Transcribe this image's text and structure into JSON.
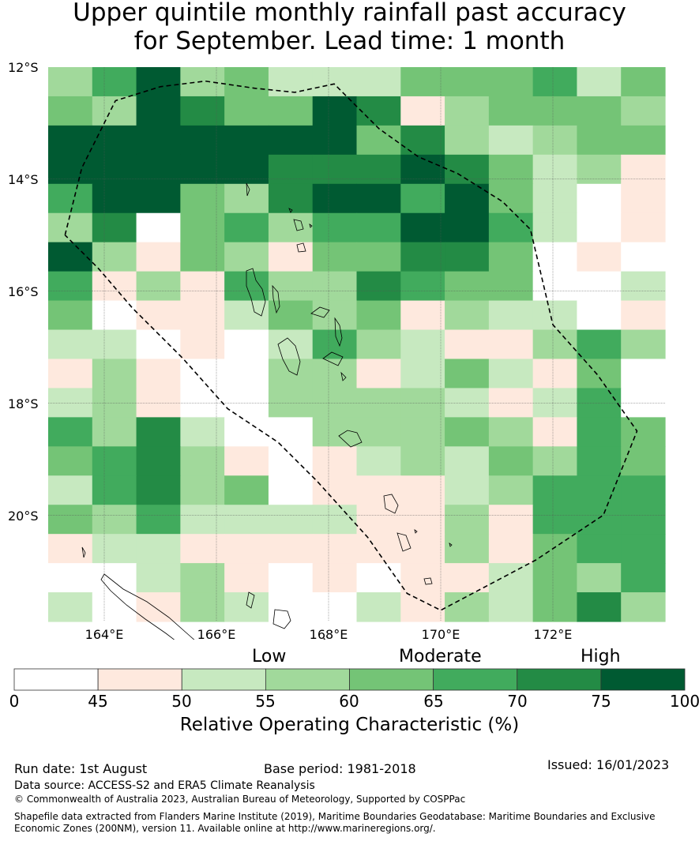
{
  "title": {
    "line1": "Upper quintile monthly rainfall past accuracy",
    "line2": "for September. Lead time: 1 month"
  },
  "map": {
    "lat_labels": [
      "12°S",
      "14°S",
      "16°S",
      "18°S",
      "20°S"
    ],
    "lon_labels": [
      "164°E",
      "166°E",
      "168°E",
      "170°E",
      "172°E"
    ],
    "lon_min": 163.0,
    "lon_max": 174.0,
    "lat_min": -21.9,
    "lat_max": -12.0,
    "grid_rows": [
      [
        3,
        5,
        7,
        3,
        4,
        2,
        2,
        2,
        4,
        4,
        4,
        5,
        2,
        4
      ],
      [
        4,
        3,
        7,
        6,
        4,
        4,
        7,
        6,
        1,
        3,
        4,
        4,
        4,
        3
      ],
      [
        7,
        7,
        7,
        7,
        7,
        7,
        7,
        4,
        6,
        3,
        2,
        3,
        4,
        4
      ],
      [
        7,
        7,
        7,
        7,
        7,
        6,
        6,
        6,
        7,
        6,
        4,
        2,
        3,
        1
      ],
      [
        5,
        7,
        7,
        4,
        3,
        6,
        7,
        7,
        5,
        7,
        4,
        2,
        0,
        1
      ],
      [
        3,
        6,
        0,
        4,
        5,
        3,
        5,
        5,
        7,
        7,
        5,
        2,
        0,
        1
      ],
      [
        7,
        3,
        1,
        4,
        3,
        1,
        4,
        4,
        6,
        6,
        4,
        0,
        1,
        0
      ],
      [
        5,
        1,
        3,
        1,
        5,
        3,
        3,
        6,
        5,
        4,
        4,
        0,
        0,
        2
      ],
      [
        4,
        0,
        1,
        1,
        2,
        4,
        3,
        4,
        1,
        3,
        2,
        2,
        0,
        1
      ],
      [
        2,
        2,
        0,
        1,
        0,
        2,
        5,
        3,
        2,
        1,
        1,
        3,
        5,
        3
      ],
      [
        1,
        3,
        1,
        0,
        0,
        3,
        3,
        1,
        2,
        4,
        2,
        1,
        4,
        0
      ],
      [
        2,
        3,
        1,
        0,
        0,
        3,
        3,
        3,
        3,
        2,
        1,
        2,
        5,
        0
      ],
      [
        5,
        3,
        6,
        2,
        0,
        0,
        3,
        3,
        3,
        4,
        3,
        1,
        5,
        4
      ],
      [
        4,
        5,
        6,
        3,
        1,
        0,
        1,
        2,
        3,
        2,
        4,
        3,
        5,
        4
      ],
      [
        2,
        5,
        6,
        3,
        4,
        0,
        1,
        1,
        1,
        2,
        3,
        5,
        5,
        5
      ],
      [
        4,
        3,
        5,
        2,
        2,
        2,
        2,
        1,
        1,
        3,
        1,
        5,
        5,
        5
      ],
      [
        1,
        2,
        2,
        1,
        1,
        1,
        1,
        1,
        1,
        3,
        1,
        4,
        5,
        5
      ],
      [
        0,
        0,
        2,
        3,
        1,
        0,
        1,
        0,
        1,
        1,
        2,
        4,
        3,
        5
      ],
      [
        2,
        0,
        1,
        3,
        2,
        0,
        0,
        2,
        1,
        3,
        2,
        4,
        6,
        3
      ]
    ],
    "eez_boundary": [
      [
        163.3,
        -15.0
      ],
      [
        163.6,
        -13.8
      ],
      [
        164.2,
        -12.6
      ],
      [
        165.0,
        -12.35
      ],
      [
        165.8,
        -12.25
      ],
      [
        166.7,
        -12.38
      ],
      [
        167.4,
        -12.45
      ],
      [
        168.1,
        -12.3
      ],
      [
        168.9,
        -13.1
      ],
      [
        169.6,
        -13.6
      ],
      [
        170.3,
        -13.9
      ],
      [
        171.1,
        -14.4
      ],
      [
        171.6,
        -14.9
      ],
      [
        172.0,
        -16.6
      ],
      [
        172.8,
        -17.5
      ],
      [
        173.5,
        -18.5
      ],
      [
        172.9,
        -20.0
      ],
      [
        171.7,
        -20.8
      ],
      [
        170.0,
        -21.7
      ],
      [
        169.4,
        -21.4
      ],
      [
        168.7,
        -20.4
      ],
      [
        167.8,
        -19.4
      ],
      [
        167.1,
        -18.7
      ],
      [
        166.2,
        -18.1
      ],
      [
        165.4,
        -17.2
      ],
      [
        164.5,
        -16.3
      ],
      [
        163.9,
        -15.6
      ],
      [
        163.3,
        -15.0
      ]
    ]
  },
  "colorbar": {
    "categories": [
      "Low",
      "Moderate",
      "High"
    ],
    "ticks": [
      "0",
      "45",
      "50",
      "55",
      "60",
      "65",
      "70",
      "75",
      "100"
    ],
    "colors": [
      "#ffffff",
      "#fee9de",
      "#c7e9c0",
      "#a1d99b",
      "#74c476",
      "#41ab5d",
      "#238b45",
      "#005a32"
    ],
    "label": "Relative Operating Characteristic (%)"
  },
  "footer": {
    "run_date": "Run date: 1st August",
    "base_period": "Base period: 1981-2018",
    "issued": "Issued: 16/01/2023",
    "data_source": "Data source: ACCESS-S2 and ERA5 Climate Reanalysis",
    "copyright": "© Commonwealth of Australia 2023, Australian Bureau of Meteorology, Supported by COSPPac",
    "shapefile_line1": "Shapefile data extracted from Flanders Marine Institute (2019), Maritime Boundaries Geodatabase: Maritime Boundaries and Exclusive",
    "shapefile_line2": "Economic Zones (200NM), version 11. Available online at http://www.marineregions.org/."
  }
}
